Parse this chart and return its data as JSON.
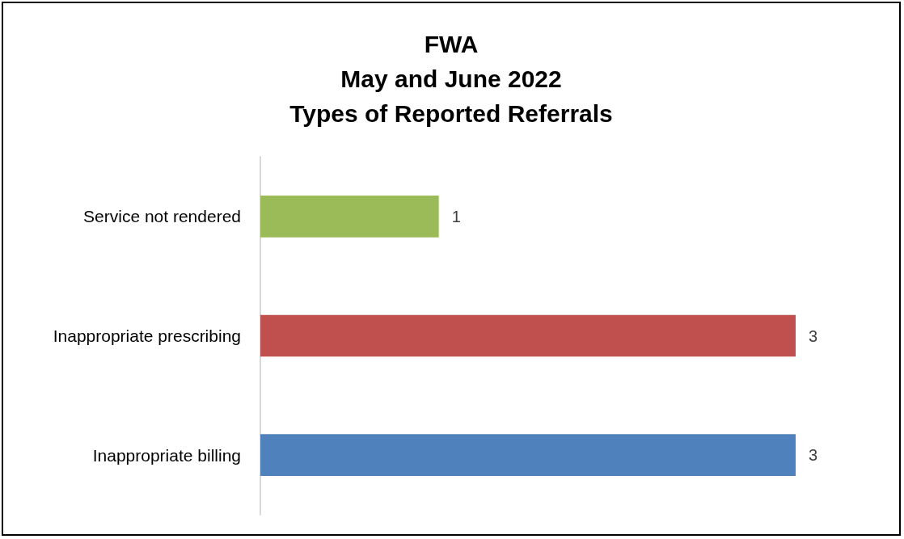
{
  "chart_data": {
    "type": "bar",
    "orientation": "horizontal",
    "title": "FWA\nMay and June 2022\nTypes of Reported Referrals",
    "categories": [
      "Service not rendered",
      "Inappropriate prescribing",
      "Inappropriate billing"
    ],
    "values": [
      1,
      3,
      3
    ],
    "colors": [
      "#9bbb59",
      "#c0504d",
      "#4f81bd"
    ],
    "data_labels": true
  }
}
